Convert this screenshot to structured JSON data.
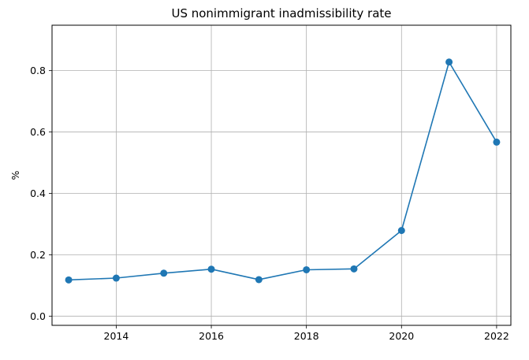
{
  "chart_data": {
    "type": "line",
    "title": "US nonimmigrant inadmissibility rate",
    "xlabel": "",
    "ylabel": "%",
    "x": [
      2013,
      2014,
      2015,
      2016,
      2017,
      2018,
      2019,
      2020,
      2021,
      2022
    ],
    "series": [
      {
        "values": [
          0.118,
          0.124,
          0.14,
          0.153,
          0.119,
          0.151,
          0.154,
          0.279,
          0.828,
          0.567
        ],
        "color": "#1f77b4",
        "marker": "circle"
      }
    ],
    "xlim": [
      2012.65,
      2022.3
    ],
    "ylim": [
      -0.03,
      0.948
    ],
    "xticks": [
      2014,
      2016,
      2018,
      2020,
      2022
    ],
    "yticks": [
      0.0,
      0.2,
      0.4,
      0.6,
      0.8
    ],
    "xtick_labels": [
      "2014",
      "2016",
      "2018",
      "2020",
      "2022"
    ],
    "ytick_labels": [
      "0.0",
      "0.2",
      "0.4",
      "0.6",
      "0.8"
    ],
    "grid": true,
    "legend": "none"
  }
}
